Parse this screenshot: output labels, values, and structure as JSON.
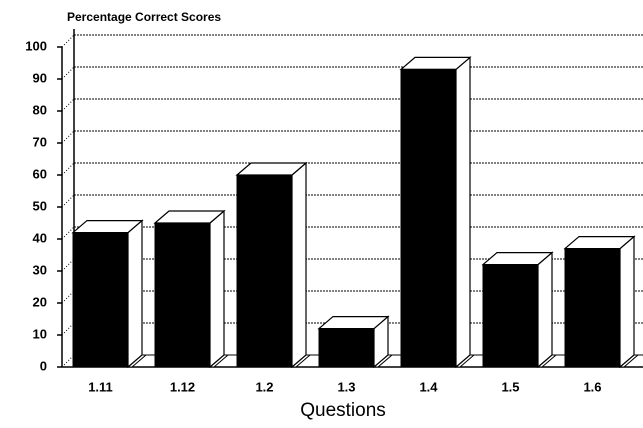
{
  "chart_data": {
    "type": "bar3d",
    "title": "Percentage Correct Scores",
    "x_label": "Questions",
    "categories": [
      "1.11",
      "1.12",
      "1.2",
      "1.3",
      "1.4",
      "1.5",
      "1.6"
    ],
    "values": [
      42,
      45,
      60,
      12,
      93,
      32,
      37
    ],
    "color": "#000000",
    "ylim": [
      0,
      100
    ],
    "yticks": [
      0,
      10,
      20,
      30,
      40,
      50,
      60,
      70,
      80,
      90,
      100
    ],
    "grid": true
  }
}
